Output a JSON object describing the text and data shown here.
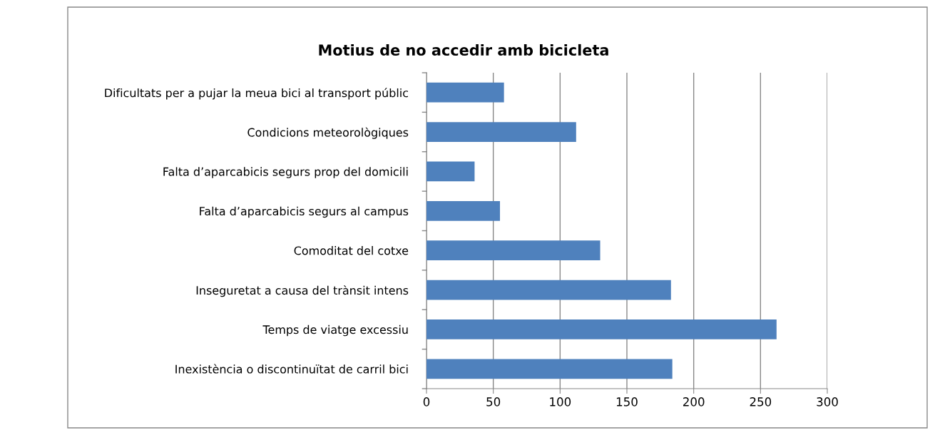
{
  "chart_data": {
    "type": "bar",
    "orientation": "horizontal",
    "title": "Motius de no accedir amb bicicleta",
    "categories": [
      "Dificultats per a pujar la meua bici al transport públic",
      "Condicions meteorològiques",
      "Falta d’aparcabicis segurs prop del domicili",
      "Falta d’aparcabicis segurs al campus",
      "Comoditat del cotxe",
      "Inseguretat a causa del trànsit intens",
      "Temps de viatge excessiu",
      "Inexistència o discontinuïtat de carril bici"
    ],
    "values": [
      58,
      112,
      36,
      55,
      130,
      183,
      262,
      184
    ],
    "color": "#4f81bd",
    "xlim": [
      0,
      300
    ],
    "xticks": [
      0,
      50,
      100,
      150,
      200,
      250,
      300
    ],
    "grid": "x",
    "legend": false
  }
}
